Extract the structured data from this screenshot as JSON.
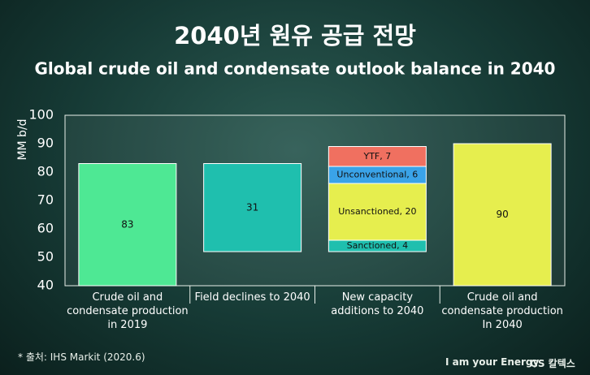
{
  "chart_data": {
    "type": "waterfall",
    "title": "2040년 원유 공급 전망",
    "subtitle": "Global crude oil and condensate outlook balance in 2040",
    "y_label": "MM b/d",
    "ylim": [
      40,
      100
    ],
    "yticks": [
      40,
      50,
      60,
      70,
      80,
      90,
      100
    ],
    "bars": [
      {
        "category": "Crude oil and condensate production in 2019",
        "value": 83,
        "color": "#4ee894"
      },
      {
        "category": "Field declines to 2040",
        "value": -31,
        "value_label": "31",
        "color": "#1fbfae"
      },
      {
        "category": "New capacity additions to 2040",
        "segments": {
          "values": [
            4,
            20,
            6,
            7
          ],
          "value_labels": [
            "Sanctioned, 4",
            "Unsanctioned, 20",
            "Unconventional, 6",
            "YTF, 7"
          ],
          "colors": [
            "#1fbfae",
            "#e6ee4e",
            "#3aa3e8",
            "#f07060"
          ]
        }
      },
      {
        "category": "Crude oil and condensate production In 2040",
        "value": 90,
        "color": "#e6ee4e"
      }
    ]
  },
  "footer": {
    "source": "* 출처:  IHS Markit (2020.6)",
    "slogan": "I am your Energy",
    "brand": "GS 칼텍스"
  }
}
